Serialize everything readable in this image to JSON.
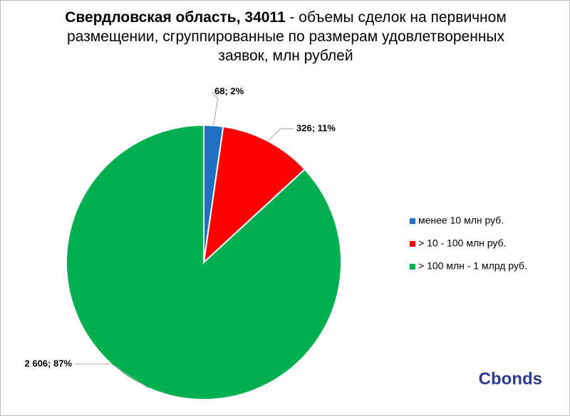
{
  "chart_data": {
    "type": "pie",
    "title": [
      "Свердловская область, 34011",
      " - объемы сделок на первичном размещении, сгруппированные по размерам удовлетворенных заявок, млн рублей"
    ],
    "categories": [
      "менее 10 млн руб.",
      "> 10 - 100 млн руб.",
      "> 100 млн - 1 млрд руб."
    ],
    "values": [
      68,
      326,
      2606
    ],
    "value_labels": [
      "68; 2%",
      "326; 11%",
      "2 606; 87%"
    ],
    "colors": [
      "#1f6fc5",
      "#ff0000",
      "#00b050"
    ],
    "legend": "right",
    "logo": "Cbonds"
  }
}
